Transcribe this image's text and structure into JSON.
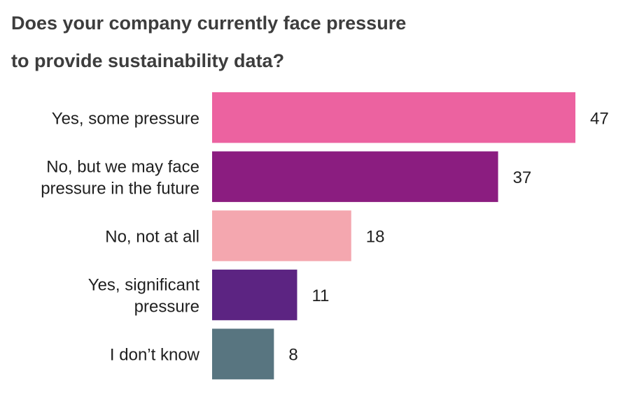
{
  "chart_data": {
    "type": "bar",
    "orientation": "horizontal",
    "title_lines": [
      "Does your company currently face pressure",
      "to provide sustainability data?"
    ],
    "categories": [
      [
        "Yes, some pressure"
      ],
      [
        "No, but we may face",
        "pressure in the future"
      ],
      [
        "No, not at all"
      ],
      [
        "Yes, significant",
        "pressure"
      ],
      [
        "I don’t know"
      ]
    ],
    "values": [
      47,
      37,
      18,
      11,
      8
    ],
    "colors": [
      "#EC62A0",
      "#8B1D80",
      "#F4A7AF",
      "#5C2482",
      "#587580"
    ],
    "xlabel": "",
    "ylabel": "",
    "xlim": [
      0,
      47
    ],
    "grid": false,
    "data_labels": true
  }
}
